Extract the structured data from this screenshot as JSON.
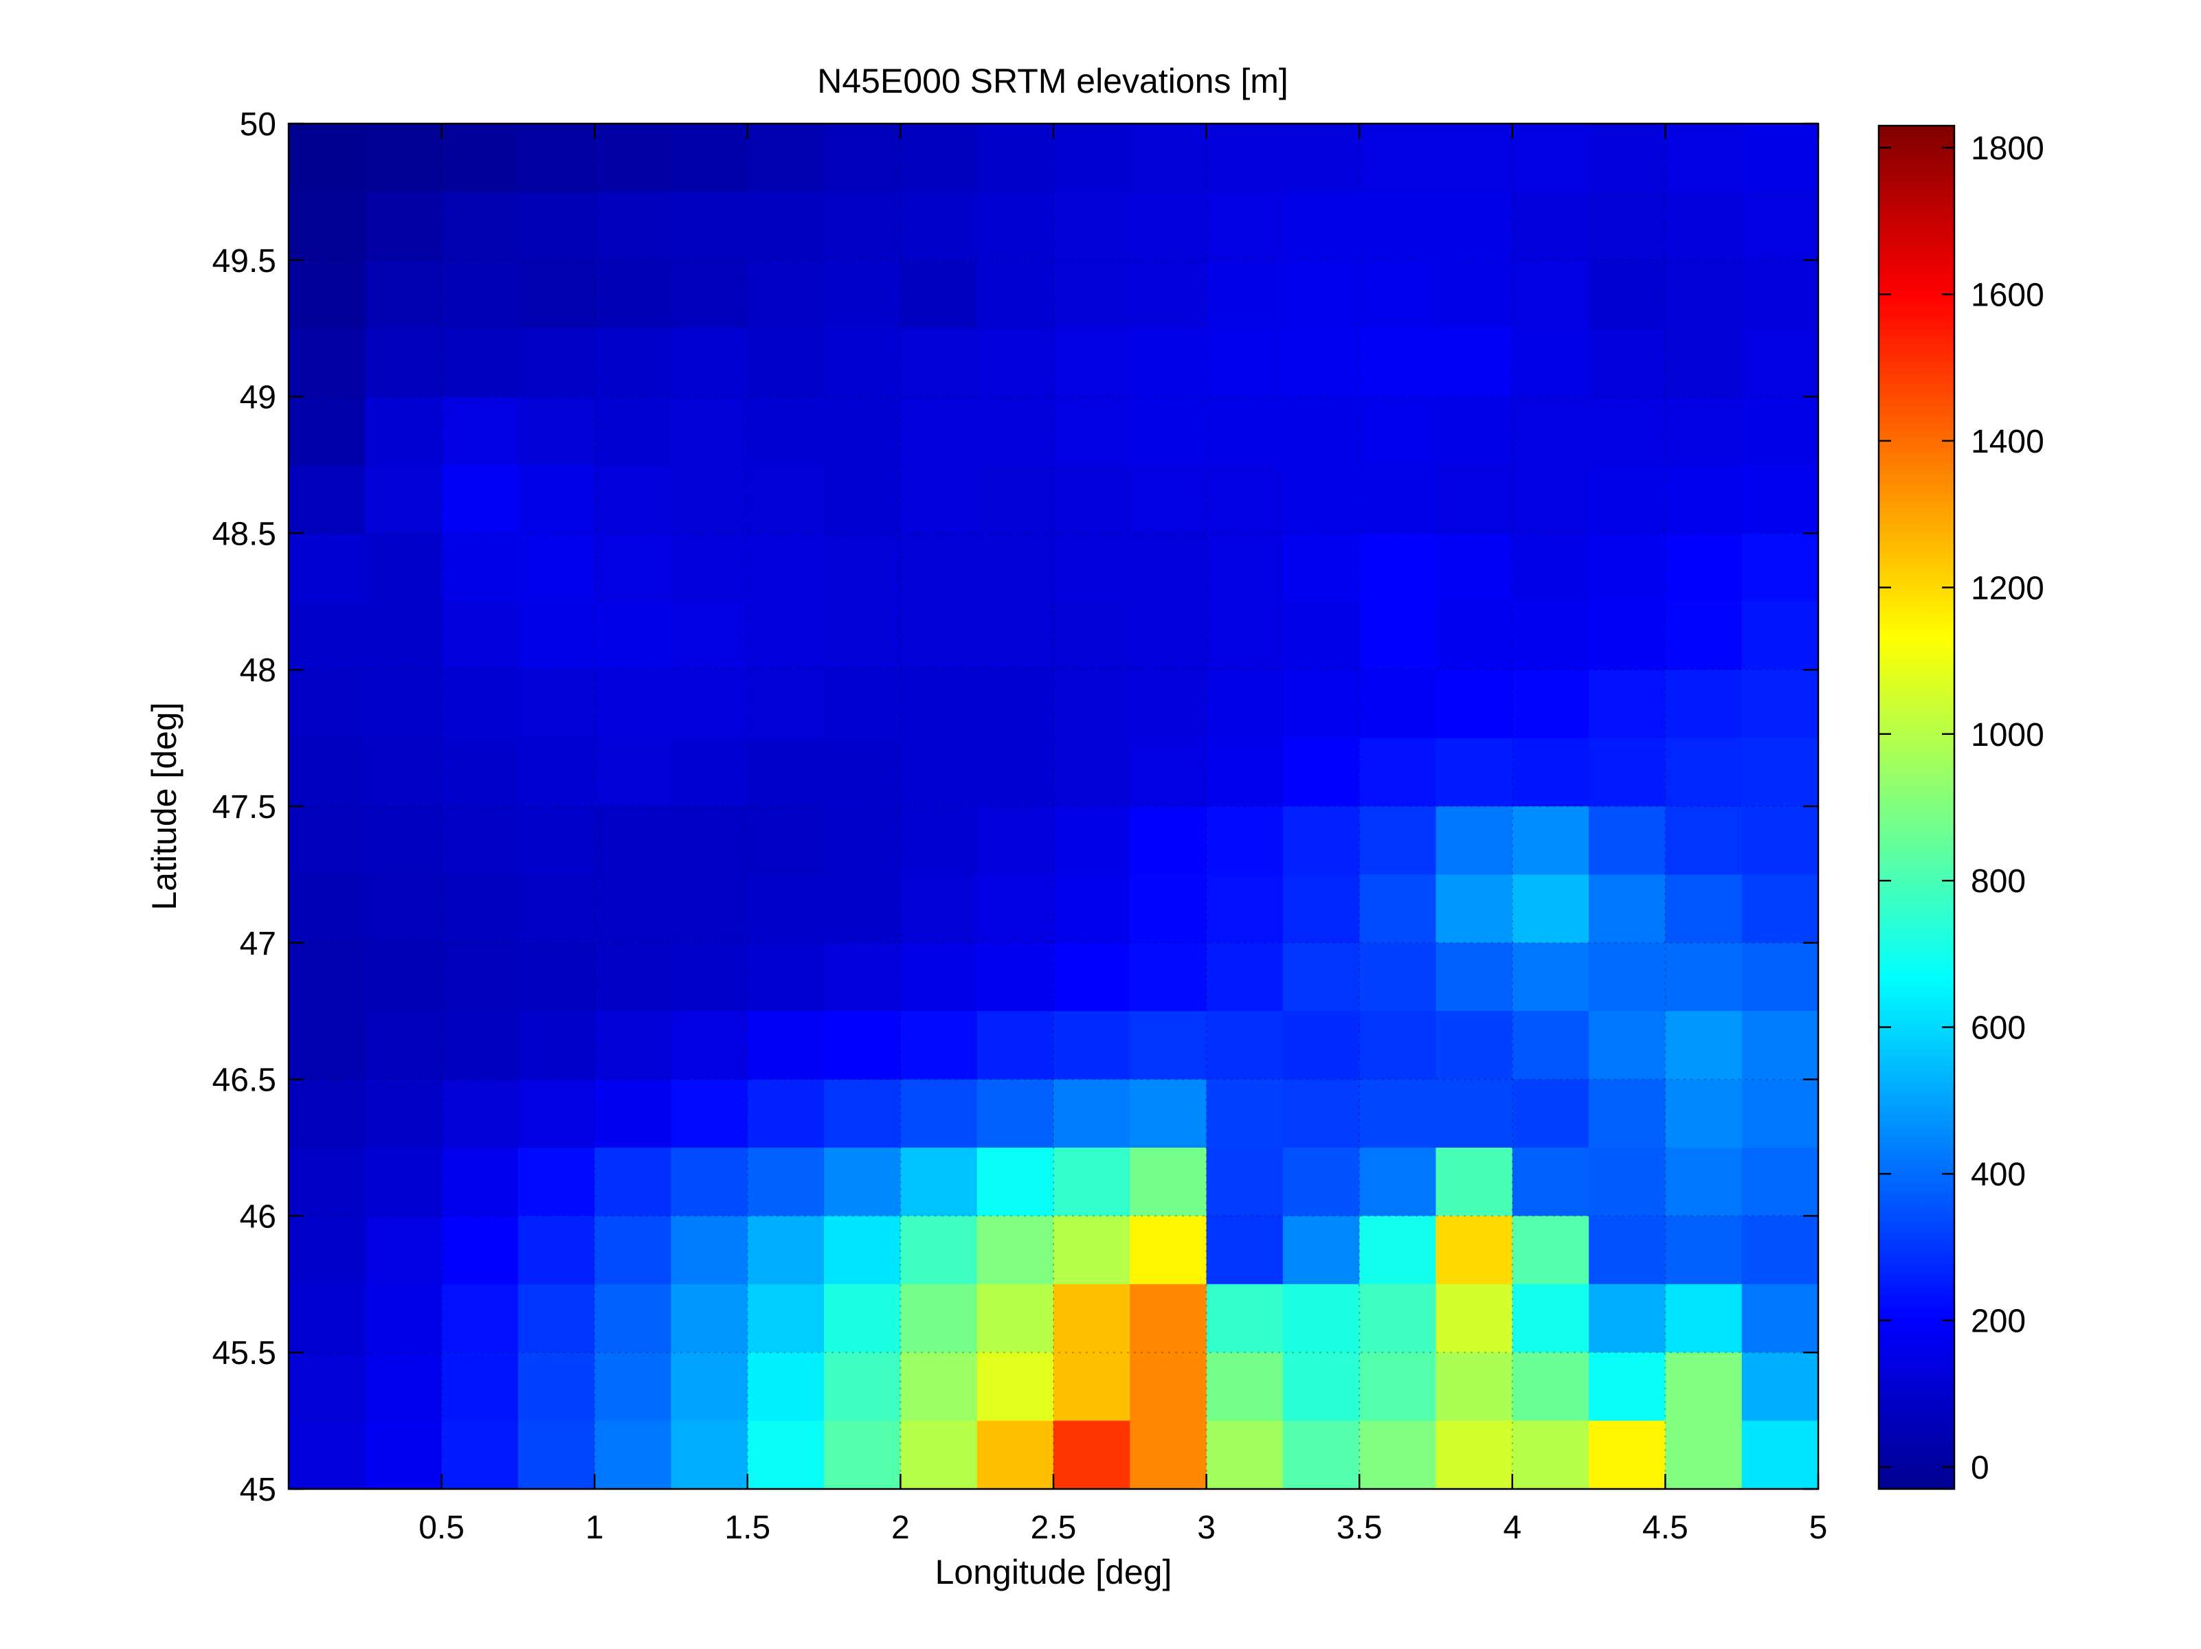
{
  "chart_data": {
    "type": "heatmap",
    "title": "N45E000 SRTM elevations [m]",
    "xlabel": "Longitude [deg]",
    "ylabel": "Latitude [deg]",
    "xlim": [
      0,
      5
    ],
    "ylim": [
      45,
      50
    ],
    "x_ticks": [
      0.5,
      1,
      1.5,
      2,
      2.5,
      3,
      3.5,
      4,
      4.5,
      5
    ],
    "x_tick_labels": [
      "0.5",
      "1",
      "1.5",
      "2",
      "2.5",
      "3",
      "3.5",
      "4",
      "4.5",
      "5"
    ],
    "y_ticks": [
      45,
      45.5,
      46,
      46.5,
      47,
      47.5,
      48,
      48.5,
      49,
      49.5,
      50
    ],
    "y_tick_labels": [
      "45",
      "45.5",
      "46",
      "46.5",
      "47",
      "47.5",
      "48",
      "48.5",
      "49",
      "49.5",
      "50"
    ],
    "colorbar": {
      "colormap": "jet",
      "clim": [
        -30,
        1830
      ],
      "ticks": [
        0,
        200,
        400,
        600,
        800,
        1000,
        1200,
        1400,
        1600,
        1800
      ],
      "tick_labels": [
        "0",
        "200",
        "400",
        "600",
        "800",
        "1000",
        "1200",
        "1400",
        "1600",
        "1800"
      ]
    },
    "grid": true,
    "grid_columns": 20,
    "grid_rows": 20,
    "elevation_grid_m": [
      [
        0,
        10,
        20,
        30,
        40,
        50,
        60,
        80,
        90,
        110,
        120,
        130,
        140,
        140,
        150,
        150,
        150,
        140,
        150,
        160
      ],
      [
        10,
        40,
        60,
        70,
        80,
        90,
        90,
        100,
        110,
        120,
        130,
        140,
        150,
        160,
        160,
        160,
        140,
        130,
        140,
        150
      ],
      [
        20,
        60,
        70,
        60,
        70,
        80,
        100,
        110,
        90,
        120,
        130,
        140,
        160,
        170,
        170,
        160,
        150,
        120,
        130,
        140
      ],
      [
        40,
        80,
        90,
        100,
        110,
        120,
        110,
        120,
        130,
        140,
        150,
        160,
        170,
        180,
        190,
        190,
        160,
        140,
        130,
        150
      ],
      [
        50,
        120,
        150,
        130,
        120,
        130,
        120,
        120,
        140,
        140,
        150,
        160,
        160,
        160,
        170,
        160,
        150,
        150,
        150,
        160
      ],
      [
        80,
        130,
        190,
        160,
        140,
        130,
        130,
        120,
        140,
        130,
        140,
        150,
        150,
        160,
        160,
        150,
        150,
        160,
        170,
        180
      ],
      [
        120,
        110,
        160,
        170,
        150,
        140,
        140,
        130,
        130,
        130,
        140,
        140,
        150,
        180,
        200,
        190,
        160,
        180,
        200,
        220
      ],
      [
        110,
        110,
        140,
        160,
        160,
        150,
        140,
        130,
        130,
        130,
        130,
        140,
        150,
        160,
        200,
        180,
        180,
        190,
        210,
        240
      ],
      [
        100,
        110,
        120,
        130,
        140,
        140,
        130,
        120,
        120,
        120,
        130,
        140,
        160,
        180,
        190,
        200,
        210,
        230,
        250,
        260
      ],
      [
        90,
        100,
        110,
        120,
        130,
        120,
        110,
        110,
        120,
        120,
        130,
        150,
        170,
        200,
        230,
        250,
        240,
        250,
        270,
        280
      ],
      [
        80,
        90,
        100,
        110,
        100,
        100,
        100,
        110,
        120,
        140,
        160,
        200,
        220,
        260,
        300,
        420,
        460,
        350,
        300,
        290
      ],
      [
        70,
        80,
        90,
        100,
        100,
        100,
        110,
        110,
        130,
        150,
        170,
        210,
        230,
        270,
        340,
        480,
        540,
        420,
        360,
        320
      ],
      [
        60,
        70,
        80,
        90,
        100,
        110,
        120,
        140,
        160,
        180,
        200,
        220,
        250,
        300,
        320,
        380,
        420,
        400,
        400,
        380
      ],
      [
        60,
        80,
        90,
        110,
        130,
        150,
        190,
        200,
        220,
        260,
        280,
        300,
        290,
        280,
        300,
        320,
        360,
        420,
        480,
        430
      ],
      [
        80,
        100,
        130,
        150,
        180,
        220,
        260,
        300,
        340,
        380,
        430,
        450,
        320,
        310,
        330,
        330,
        320,
        380,
        450,
        420
      ],
      [
        100,
        120,
        170,
        220,
        290,
        340,
        380,
        450,
        560,
        680,
        760,
        880,
        310,
        350,
        420,
        800,
        380,
        370,
        420,
        390
      ],
      [
        110,
        150,
        200,
        260,
        340,
        430,
        520,
        620,
        780,
        900,
        1000,
        1150,
        300,
        450,
        700,
        1200,
        820,
        350,
        380,
        350
      ],
      [
        120,
        160,
        230,
        300,
        380,
        480,
        580,
        720,
        880,
        1000,
        1250,
        1350,
        760,
        720,
        780,
        1050,
        700,
        520,
        620,
        420
      ],
      [
        130,
        170,
        240,
        320,
        400,
        500,
        640,
        780,
        950,
        1080,
        1250,
        1350,
        880,
        740,
        820,
        980,
        860,
        680,
        900,
        520
      ],
      [
        140,
        180,
        250,
        330,
        420,
        520,
        680,
        820,
        1000,
        1250,
        1500,
        1350,
        960,
        820,
        900,
        1050,
        1000,
        1150,
        900,
        620
      ]
    ]
  }
}
